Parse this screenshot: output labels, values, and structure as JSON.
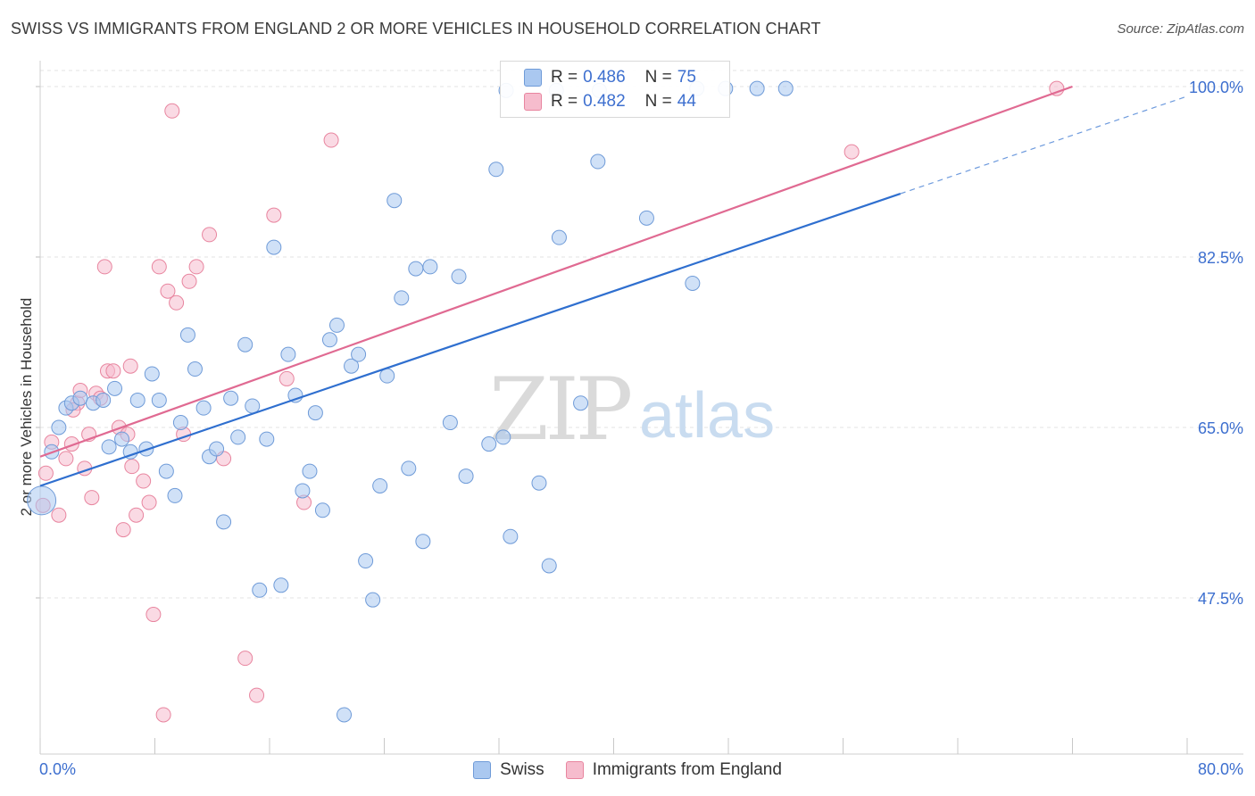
{
  "title": "SWISS VS IMMIGRANTS FROM ENGLAND 2 OR MORE VEHICLES IN HOUSEHOLD CORRELATION CHART",
  "source": "Source: ZipAtlas.com",
  "watermark": {
    "zip": "ZIP",
    "atlas": "atlas"
  },
  "colors": {
    "swiss_fill": "#aac8f0",
    "swiss_stroke": "#6f9bd8",
    "swiss_line": "#2f6fcf",
    "england_fill": "#f6bccd",
    "england_stroke": "#e8859f",
    "england_line": "#e06a92",
    "tick_text": "#3d6fcf"
  },
  "legend_top": {
    "rows": [
      {
        "r_label": "R =",
        "r_value": "0.486",
        "n_label": "N =",
        "n_value": "75"
      },
      {
        "r_label": "R =",
        "r_value": "0.482",
        "n_label": "N =",
        "n_value": "44"
      }
    ]
  },
  "legend_bottom": {
    "swiss": "Swiss",
    "england": "Immigrants from England"
  },
  "chart_data": {
    "type": "scatter",
    "title": "SWISS VS IMMIGRANTS FROM ENGLAND 2 OR MORE VEHICLES IN HOUSEHOLD CORRELATION CHART",
    "xlabel": "",
    "ylabel": "2 or more Vehicles in Household",
    "xlim": [
      0,
      80
    ],
    "ylim": [
      30,
      100
    ],
    "x_tick_labels": [
      "0.0%",
      "80.0%"
    ],
    "y_ticks": [
      47.5,
      65.0,
      82.5,
      100.0
    ],
    "y_tick_labels": [
      "47.5%",
      "65.0%",
      "82.5%",
      "100.0%"
    ],
    "grid": "horizontal dashed",
    "legend_placement": "top-center and bottom",
    "series": [
      {
        "name": "Swiss",
        "r": 0.486,
        "n": 75,
        "trend": {
          "x0": 0,
          "y0": 59.0,
          "x1": 60,
          "y1": 89.0,
          "dashed_to_x": 80,
          "dashed_to_y": 99.0
        },
        "points": [
          [
            0.1,
            57.5
          ],
          [
            0.8,
            62.5
          ],
          [
            1.3,
            65.0
          ],
          [
            1.8,
            67.0
          ],
          [
            2.2,
            67.5
          ],
          [
            2.8,
            68.0
          ],
          [
            3.7,
            67.5
          ],
          [
            4.4,
            67.8
          ],
          [
            5.2,
            69.0
          ],
          [
            4.8,
            63.0
          ],
          [
            5.7,
            63.8
          ],
          [
            6.3,
            62.5
          ],
          [
            6.8,
            67.8
          ],
          [
            7.4,
            62.8
          ],
          [
            7.8,
            70.5
          ],
          [
            8.3,
            67.8
          ],
          [
            8.8,
            60.5
          ],
          [
            9.4,
            58.0
          ],
          [
            9.8,
            65.5
          ],
          [
            10.3,
            74.5
          ],
          [
            10.8,
            71.0
          ],
          [
            11.4,
            67.0
          ],
          [
            11.8,
            62.0
          ],
          [
            12.3,
            62.8
          ],
          [
            12.8,
            55.3
          ],
          [
            13.3,
            68.0
          ],
          [
            13.8,
            64.0
          ],
          [
            14.3,
            73.5
          ],
          [
            14.8,
            67.2
          ],
          [
            15.3,
            48.3
          ],
          [
            15.8,
            63.8
          ],
          [
            16.3,
            83.5
          ],
          [
            16.8,
            48.8
          ],
          [
            17.3,
            72.5
          ],
          [
            17.8,
            68.3
          ],
          [
            18.3,
            58.5
          ],
          [
            18.8,
            60.5
          ],
          [
            19.2,
            66.5
          ],
          [
            19.7,
            56.5
          ],
          [
            20.2,
            74.0
          ],
          [
            20.7,
            75.5
          ],
          [
            21.2,
            35.5
          ],
          [
            21.7,
            71.3
          ],
          [
            22.2,
            72.5
          ],
          [
            22.7,
            51.3
          ],
          [
            23.2,
            47.3
          ],
          [
            23.7,
            59.0
          ],
          [
            24.2,
            70.3
          ],
          [
            24.7,
            88.3
          ],
          [
            25.2,
            78.3
          ],
          [
            25.7,
            60.8
          ],
          [
            26.2,
            81.3
          ],
          [
            26.7,
            53.3
          ],
          [
            27.2,
            81.5
          ],
          [
            28.6,
            65.5
          ],
          [
            29.2,
            80.5
          ],
          [
            29.7,
            60.0
          ],
          [
            31.3,
            63.3
          ],
          [
            31.8,
            91.5
          ],
          [
            32.3,
            64.0
          ],
          [
            32.8,
            53.8
          ],
          [
            34.8,
            59.3
          ],
          [
            35.5,
            50.8
          ],
          [
            36.2,
            84.5
          ],
          [
            37.7,
            67.5
          ],
          [
            38.9,
            92.3
          ],
          [
            42.3,
            86.5
          ],
          [
            45.5,
            79.8
          ],
          [
            50.0,
            99.8
          ],
          [
            52.0,
            99.8
          ],
          [
            45.8,
            99.8
          ],
          [
            47.8,
            99.8
          ],
          [
            32.5,
            99.6
          ],
          [
            36.0,
            99.6
          ],
          [
            39.0,
            99.6
          ]
        ]
      },
      {
        "name": "Immigrants from England",
        "r": 0.482,
        "n": 44,
        "trend": {
          "x0": 0,
          "y0": 62.0,
          "x1": 72,
          "y1": 100.0
        },
        "points": [
          [
            0.2,
            57.0
          ],
          [
            0.4,
            60.3
          ],
          [
            0.8,
            63.5
          ],
          [
            1.3,
            56.0
          ],
          [
            1.8,
            61.8
          ],
          [
            2.2,
            63.3
          ],
          [
            2.6,
            67.5
          ],
          [
            2.8,
            68.8
          ],
          [
            3.1,
            60.8
          ],
          [
            3.4,
            64.3
          ],
          [
            3.6,
            57.8
          ],
          [
            3.9,
            68.5
          ],
          [
            4.2,
            68.0
          ],
          [
            4.5,
            81.5
          ],
          [
            4.7,
            70.8
          ],
          [
            5.1,
            70.8
          ],
          [
            5.5,
            65.0
          ],
          [
            5.8,
            54.5
          ],
          [
            6.1,
            64.3
          ],
          [
            6.4,
            61.0
          ],
          [
            6.7,
            56.0
          ],
          [
            7.2,
            59.5
          ],
          [
            7.6,
            57.3
          ],
          [
            7.9,
            45.8
          ],
          [
            8.3,
            81.5
          ],
          [
            8.6,
            35.5
          ],
          [
            8.9,
            79.0
          ],
          [
            9.2,
            97.5
          ],
          [
            9.5,
            77.8
          ],
          [
            10.0,
            64.3
          ],
          [
            10.4,
            80.0
          ],
          [
            10.9,
            81.5
          ],
          [
            11.8,
            84.8
          ],
          [
            12.8,
            61.8
          ],
          [
            14.3,
            41.3
          ],
          [
            15.1,
            37.5
          ],
          [
            16.3,
            86.8
          ],
          [
            17.2,
            70.0
          ],
          [
            18.4,
            57.3
          ],
          [
            20.3,
            94.5
          ],
          [
            56.6,
            93.3
          ],
          [
            70.9,
            99.8
          ],
          [
            6.3,
            71.3
          ],
          [
            2.3,
            66.8
          ]
        ]
      }
    ]
  }
}
